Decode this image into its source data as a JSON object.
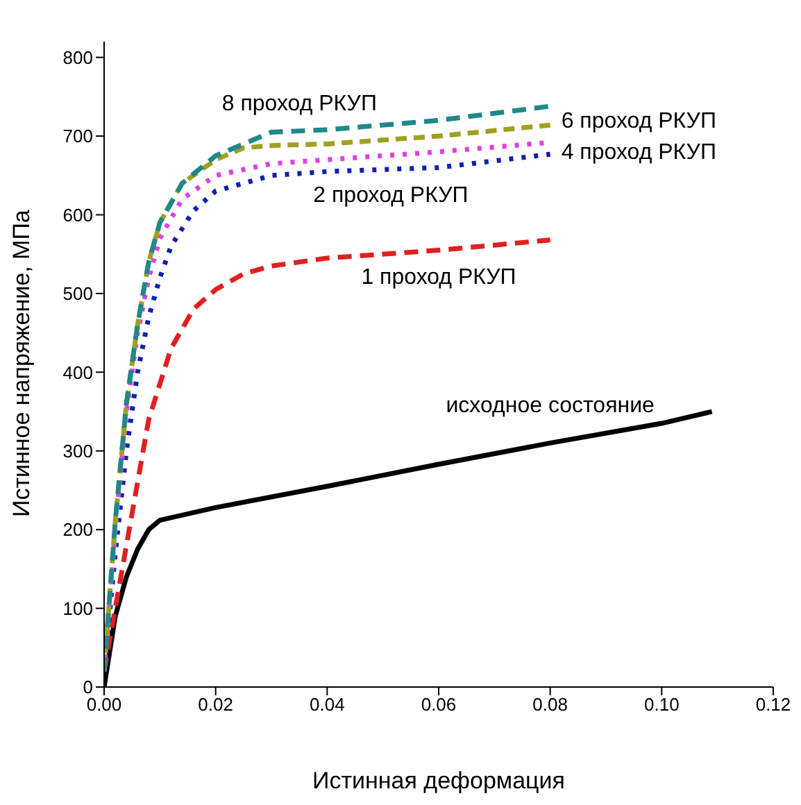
{
  "chart_data": {
    "type": "line",
    "xlabel": "Истинная деформация",
    "ylabel": "Истинное напряжение, МПа",
    "xlim": [
      0,
      0.12
    ],
    "ylim": [
      0,
      820
    ],
    "xticks": [
      {
        "value": 0,
        "label": "0.00"
      },
      {
        "value": 0.02,
        "label": "0.02"
      },
      {
        "value": 0.04,
        "label": "0.04"
      },
      {
        "value": 0.06,
        "label": "0.06"
      },
      {
        "value": 0.08,
        "label": "0.08"
      },
      {
        "value": 0.1,
        "label": "0.10"
      },
      {
        "value": 0.12,
        "label": "0.12"
      }
    ],
    "yticks": [
      0,
      100,
      200,
      300,
      400,
      500,
      600,
      700,
      800
    ],
    "grid": false,
    "legend": false,
    "marker": "none",
    "series": [
      {
        "name": "исходное состояние",
        "color": "#000000",
        "line_style": "solid",
        "x": [
          0,
          0.002,
          0.004,
          0.006,
          0.008,
          0.01,
          0.02,
          0.04,
          0.06,
          0.08,
          0.1,
          0.109
        ],
        "values": [
          0,
          90,
          140,
          175,
          200,
          212,
          228,
          255,
          283,
          310,
          335,
          350
        ]
      },
      {
        "name": "1 проход РКУП",
        "color": "#e02020",
        "line_style": "dashed",
        "x": [
          0,
          0.002,
          0.004,
          0.006,
          0.008,
          0.012,
          0.016,
          0.02,
          0.025,
          0.03,
          0.04,
          0.06,
          0.08
        ],
        "values": [
          20,
          100,
          180,
          260,
          340,
          430,
          480,
          505,
          525,
          535,
          545,
          555,
          568
        ]
      },
      {
        "name": "2 проход РКУП",
        "color": "#1020b0",
        "line_style": "dotted",
        "x": [
          0,
          0.002,
          0.004,
          0.006,
          0.008,
          0.01,
          0.012,
          0.016,
          0.02,
          0.03,
          0.04,
          0.06,
          0.08
        ],
        "values": [
          20,
          170,
          300,
          400,
          470,
          520,
          560,
          605,
          630,
          650,
          655,
          660,
          677
        ]
      },
      {
        "name": "4 проход РКУП",
        "color": "#e040e0",
        "line_style": "dotted",
        "x": [
          0,
          0.002,
          0.004,
          0.006,
          0.008,
          0.01,
          0.014,
          0.02,
          0.03,
          0.04,
          0.06,
          0.08
        ],
        "values": [
          20,
          200,
          350,
          450,
          520,
          570,
          620,
          650,
          665,
          670,
          680,
          692
        ]
      },
      {
        "name": "6 проход РКУП",
        "color": "#a0a020",
        "line_style": "dashed",
        "x": [
          0,
          0.002,
          0.004,
          0.006,
          0.008,
          0.01,
          0.014,
          0.02,
          0.025,
          0.03,
          0.04,
          0.06,
          0.08
        ],
        "values": [
          20,
          210,
          360,
          460,
          540,
          590,
          640,
          670,
          685,
          688,
          690,
          700,
          714
        ]
      },
      {
        "name": "8 проход РКУП",
        "color": "#208888",
        "line_style": "dashed",
        "x": [
          0,
          0.002,
          0.004,
          0.006,
          0.008,
          0.01,
          0.014,
          0.02,
          0.025,
          0.03,
          0.04,
          0.06,
          0.08
        ],
        "values": [
          20,
          210,
          360,
          460,
          540,
          590,
          640,
          675,
          690,
          705,
          708,
          720,
          738
        ]
      }
    ]
  }
}
